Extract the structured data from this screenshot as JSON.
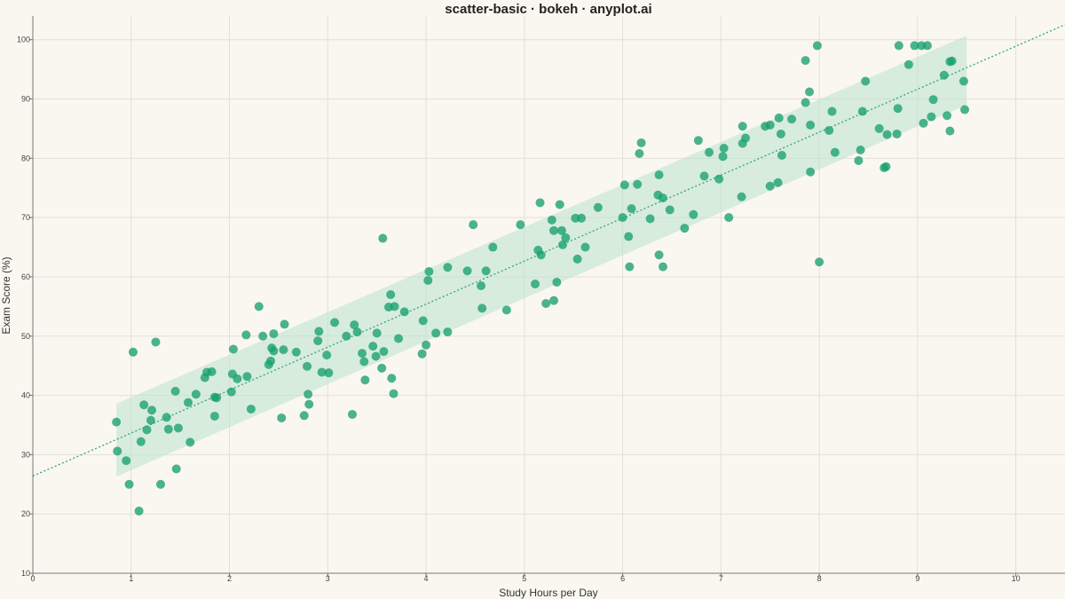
{
  "chart_data": {
    "type": "scatter",
    "title": "scatter-basic · bokeh · anyplot.ai",
    "xlabel": "Study Hours per Day",
    "ylabel": "Exam Score (%)",
    "xlim": [
      0,
      10.5
    ],
    "ylim": [
      10,
      104
    ],
    "x_ticks": [
      0,
      1,
      2,
      3,
      4,
      5,
      6,
      7,
      8,
      9,
      10
    ],
    "y_ticks": [
      10,
      20,
      30,
      40,
      50,
      60,
      70,
      80,
      90,
      100
    ],
    "grid": true,
    "colors": {
      "background": "#faf7f0",
      "points": "#18a06e",
      "band": "#b9e3cd",
      "trend": "#3aaa80",
      "grid": "#e3e0d8",
      "axis": "#777777"
    },
    "trend_line": {
      "intercept": 26.4,
      "slope": 7.25,
      "style": "dotted"
    },
    "band": {
      "x": [
        0.85,
        9.5
      ],
      "lower": [
        26.3,
        89.0
      ],
      "upper": [
        38.6,
        100.7
      ]
    },
    "points": [
      [
        0.85,
        35.5
      ],
      [
        0.86,
        30.6
      ],
      [
        0.95,
        29.0
      ],
      [
        0.98,
        25.0
      ],
      [
        1.02,
        47.3
      ],
      [
        1.08,
        20.5
      ],
      [
        1.1,
        32.2
      ],
      [
        1.13,
        38.4
      ],
      [
        1.16,
        34.2
      ],
      [
        1.2,
        35.8
      ],
      [
        1.21,
        37.5
      ],
      [
        1.25,
        49.0
      ],
      [
        1.3,
        25.0
      ],
      [
        1.36,
        36.3
      ],
      [
        1.38,
        34.3
      ],
      [
        1.45,
        40.7
      ],
      [
        1.46,
        27.6
      ],
      [
        1.48,
        34.5
      ],
      [
        1.58,
        38.8
      ],
      [
        1.6,
        32.1
      ],
      [
        1.66,
        40.2
      ],
      [
        1.75,
        43.0
      ],
      [
        1.77,
        43.9
      ],
      [
        1.82,
        44.0
      ],
      [
        1.85,
        39.7
      ],
      [
        1.85,
        36.5
      ],
      [
        1.87,
        39.6
      ],
      [
        2.02,
        40.6
      ],
      [
        2.03,
        43.6
      ],
      [
        2.04,
        47.8
      ],
      [
        2.08,
        42.8
      ],
      [
        2.17,
        50.2
      ],
      [
        2.18,
        43.2
      ],
      [
        2.22,
        37.7
      ],
      [
        2.3,
        55.0
      ],
      [
        2.34,
        50.0
      ],
      [
        2.4,
        45.2
      ],
      [
        2.42,
        45.8
      ],
      [
        2.43,
        48.0
      ],
      [
        2.45,
        50.4
      ],
      [
        2.45,
        47.5
      ],
      [
        2.53,
        36.2
      ],
      [
        2.55,
        47.7
      ],
      [
        2.56,
        52.0
      ],
      [
        2.68,
        47.3
      ],
      [
        2.76,
        36.6
      ],
      [
        2.79,
        44.9
      ],
      [
        2.8,
        40.2
      ],
      [
        2.81,
        38.5
      ],
      [
        2.9,
        49.2
      ],
      [
        2.91,
        50.8
      ],
      [
        2.94,
        43.9
      ],
      [
        2.99,
        46.8
      ],
      [
        3.01,
        43.8
      ],
      [
        3.07,
        52.3
      ],
      [
        3.19,
        50.0
      ],
      [
        3.25,
        36.8
      ],
      [
        3.27,
        51.9
      ],
      [
        3.3,
        50.7
      ],
      [
        3.35,
        47.1
      ],
      [
        3.37,
        45.7
      ],
      [
        3.38,
        42.6
      ],
      [
        3.46,
        48.3
      ],
      [
        3.5,
        50.5
      ],
      [
        3.49,
        46.6
      ],
      [
        3.56,
        66.5
      ],
      [
        3.55,
        44.6
      ],
      [
        3.57,
        47.4
      ],
      [
        3.62,
        54.9
      ],
      [
        3.64,
        57.0
      ],
      [
        3.65,
        42.9
      ],
      [
        3.67,
        40.3
      ],
      [
        3.68,
        55.0
      ],
      [
        3.72,
        49.6
      ],
      [
        3.78,
        54.1
      ],
      [
        3.96,
        47.0
      ],
      [
        3.97,
        52.6
      ],
      [
        4.0,
        48.5
      ],
      [
        4.02,
        59.4
      ],
      [
        4.03,
        60.9
      ],
      [
        4.1,
        50.5
      ],
      [
        4.22,
        61.6
      ],
      [
        4.22,
        50.7
      ],
      [
        4.42,
        61.0
      ],
      [
        4.48,
        68.8
      ],
      [
        4.56,
        58.5
      ],
      [
        4.57,
        54.7
      ],
      [
        4.61,
        61.0
      ],
      [
        4.68,
        65.0
      ],
      [
        4.82,
        54.4
      ],
      [
        4.96,
        68.8
      ],
      [
        5.11,
        58.8
      ],
      [
        5.14,
        64.5
      ],
      [
        5.17,
        63.7
      ],
      [
        5.16,
        72.5
      ],
      [
        5.22,
        55.5
      ],
      [
        5.28,
        69.6
      ],
      [
        5.3,
        56.0
      ],
      [
        5.3,
        67.8
      ],
      [
        5.33,
        59.1
      ],
      [
        5.36,
        72.2
      ],
      [
        5.38,
        67.8
      ],
      [
        5.39,
        65.4
      ],
      [
        5.42,
        66.6
      ],
      [
        5.52,
        69.9
      ],
      [
        5.54,
        63.0
      ],
      [
        5.58,
        69.9
      ],
      [
        5.62,
        65.0
      ],
      [
        5.75,
        71.7
      ],
      [
        6.0,
        70.0
      ],
      [
        6.02,
        75.5
      ],
      [
        6.06,
        66.8
      ],
      [
        6.07,
        61.7
      ],
      [
        6.09,
        71.5
      ],
      [
        6.15,
        75.6
      ],
      [
        6.17,
        80.8
      ],
      [
        6.19,
        82.6
      ],
      [
        6.28,
        69.8
      ],
      [
        6.36,
        73.8
      ],
      [
        6.37,
        63.7
      ],
      [
        6.37,
        77.2
      ],
      [
        6.41,
        73.3
      ],
      [
        6.41,
        61.7
      ],
      [
        6.48,
        71.3
      ],
      [
        6.63,
        68.2
      ],
      [
        6.72,
        70.5
      ],
      [
        6.77,
        83.0
      ],
      [
        6.83,
        77.0
      ],
      [
        6.88,
        81.0
      ],
      [
        6.98,
        76.5
      ],
      [
        7.02,
        80.3
      ],
      [
        7.03,
        81.7
      ],
      [
        7.08,
        70.0
      ],
      [
        7.21,
        73.5
      ],
      [
        7.22,
        85.4
      ],
      [
        7.22,
        82.5
      ],
      [
        7.25,
        83.4
      ],
      [
        7.45,
        85.4
      ],
      [
        7.5,
        85.6
      ],
      [
        7.5,
        75.3
      ],
      [
        7.58,
        75.9
      ],
      [
        7.59,
        86.8
      ],
      [
        7.61,
        84.1
      ],
      [
        7.62,
        80.5
      ],
      [
        7.72,
        86.6
      ],
      [
        7.86,
        89.4
      ],
      [
        7.86,
        96.5
      ],
      [
        7.9,
        91.2
      ],
      [
        7.91,
        85.6
      ],
      [
        7.91,
        77.7
      ],
      [
        7.98,
        99.0
      ],
      [
        8.0,
        62.5
      ],
      [
        8.1,
        84.7
      ],
      [
        8.13,
        87.9
      ],
      [
        8.16,
        81.0
      ],
      [
        8.4,
        79.6
      ],
      [
        8.42,
        81.4
      ],
      [
        8.44,
        87.9
      ],
      [
        8.47,
        93.0
      ],
      [
        8.61,
        85.0
      ],
      [
        8.66,
        78.4
      ],
      [
        8.68,
        78.6
      ],
      [
        8.69,
        84.0
      ],
      [
        8.79,
        84.1
      ],
      [
        8.8,
        88.4
      ],
      [
        8.81,
        99.0
      ],
      [
        8.91,
        95.8
      ],
      [
        8.97,
        99.0
      ],
      [
        9.04,
        99.0
      ],
      [
        9.06,
        85.9
      ],
      [
        9.1,
        99.0
      ],
      [
        9.14,
        87.0
      ],
      [
        9.16,
        89.9
      ],
      [
        9.27,
        94.0
      ],
      [
        9.3,
        87.2
      ],
      [
        9.33,
        84.6
      ],
      [
        9.33,
        96.3
      ],
      [
        9.35,
        96.4
      ],
      [
        9.47,
        93.0
      ],
      [
        9.48,
        88.2
      ]
    ]
  }
}
